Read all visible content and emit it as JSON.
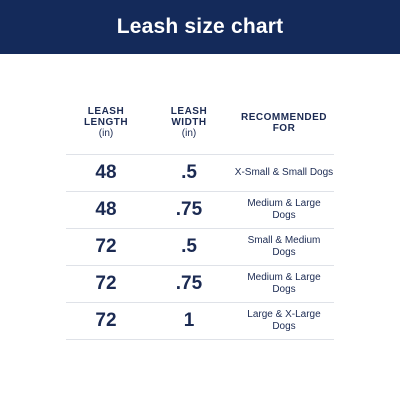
{
  "header": {
    "title": "Leash size chart"
  },
  "columns": {
    "length": {
      "line1": "LEASH",
      "line2": "LENGTH",
      "unit": "(in)"
    },
    "width": {
      "line1": "LEASH",
      "line2": "WIDTH",
      "unit": "(in)"
    },
    "recommended": {
      "line1": "RECOMMENDED",
      "line2": "FOR"
    }
  },
  "rows": [
    {
      "length": "48",
      "width": ".5",
      "recommended_1": "X-Small & Small",
      "recommended_2": "Dogs",
      "rec_inline": true
    },
    {
      "length": "48",
      "width": ".75",
      "recommended_1": "Medium & Large",
      "recommended_2": "Dogs"
    },
    {
      "length": "72",
      "width": ".5",
      "recommended_1": "Small & Medium",
      "recommended_2": "Dogs"
    },
    {
      "length": "72",
      "width": ".75",
      "recommended_1": "Medium & Large",
      "recommended_2": "Dogs"
    },
    {
      "length": "72",
      "width": "1",
      "recommended_1": "Large & X-Large",
      "recommended_2": "Dogs"
    }
  ],
  "colors": {
    "header_bg": "#142a5a",
    "text": "#1b2a52",
    "divider": "#dfe2e8"
  }
}
